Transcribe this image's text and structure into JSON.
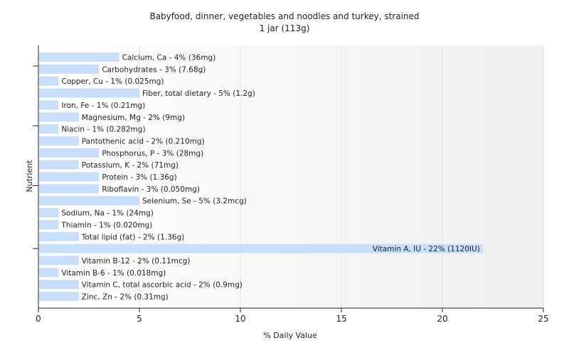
{
  "chart_data": {
    "type": "bar",
    "orientation": "horizontal",
    "title": "Babyfood, dinner, vegetables and noodles and turkey, strained",
    "subtitle": "1 jar (113g)",
    "xlabel": "% Daily Value",
    "ylabel": "Nutrient",
    "xlim": [
      0,
      25
    ],
    "xticks": [
      0,
      5,
      10,
      15,
      20,
      25
    ],
    "grid": true,
    "colors": {
      "bar": "#c8defa",
      "grid": "#e2e2e2",
      "axis": "#222222",
      "background_left": "#ffffff",
      "background_right": "#efefef"
    },
    "categories": [
      "Calcium, Ca",
      "Carbohydrates",
      "Copper, Cu",
      "Fiber, total dietary",
      "Iron, Fe",
      "Magnesium, Mg",
      "Niacin",
      "Pantothenic acid",
      "Phosphorus, P",
      "Potassium, K",
      "Protein",
      "Riboflavin",
      "Selenium, Se",
      "Sodium, Na",
      "Thiamin",
      "Total lipid (fat)",
      "Vitamin A, IU",
      "Vitamin B-12",
      "Vitamin B-6",
      "Vitamin C, total ascorbic acid",
      "Zinc, Zn"
    ],
    "values": [
      4,
      3,
      1,
      5,
      1,
      2,
      1,
      2,
      3,
      2,
      3,
      3,
      5,
      1,
      1,
      2,
      22,
      2,
      1,
      2,
      2
    ],
    "labels": [
      "Calcium, Ca - 4% (36mg)",
      "Carbohydrates - 3% (7.68g)",
      "Copper, Cu - 1% (0.025mg)",
      "Fiber, total dietary - 5% (1.2g)",
      "Iron, Fe - 1% (0.21mg)",
      "Magnesium, Mg - 2% (9mg)",
      "Niacin - 1% (0.282mg)",
      "Pantothenic acid - 2% (0.210mg)",
      "Phosphorus, P - 3% (28mg)",
      "Potassium, K - 2% (71mg)",
      "Protein - 3% (1.36g)",
      "Riboflavin - 3% (0.050mg)",
      "Selenium, Se - 5% (3.2mcg)",
      "Sodium, Na - 1% (24mg)",
      "Thiamin - 1% (0.020mg)",
      "Total lipid (fat) - 2% (1.36g)",
      "Vitamin A, IU - 22% (1120IU)",
      "Vitamin B-12 - 2% (0.11mcg)",
      "Vitamin B-6 - 1% (0.018mg)",
      "Vitamin C, total ascorbic acid - 2% (0.9mg)",
      "Zinc, Zn - 2% (0.31mg)"
    ]
  }
}
